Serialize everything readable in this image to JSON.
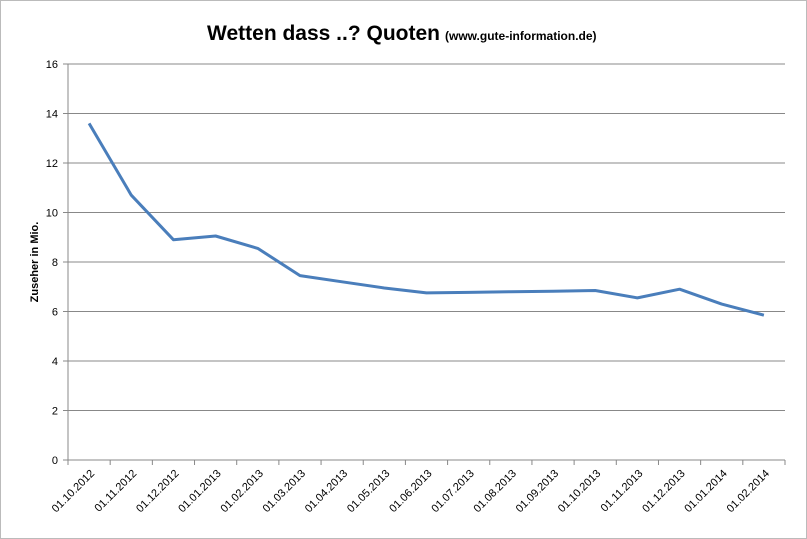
{
  "chart_data": {
    "type": "line",
    "title": "Wetten dass ..? Quoten",
    "subtitle": "(www.gute-information.de)",
    "y_label": "Zuseher in Mio.",
    "categories": [
      "01.10.2012",
      "01.11.2012",
      "01.12.2012",
      "01.01.2013",
      "01.02.2013",
      "01.03.2013",
      "01.04.2013",
      "01.05.2013",
      "01.06.2013",
      "01.07.2013",
      "01.08.2013",
      "01.09.2013",
      "01.10.2013",
      "01.11.2013",
      "01.12.2013",
      "01.01.2014",
      "01.02.2014"
    ],
    "values": [
      13.6,
      10.7,
      8.9,
      9.05,
      8.55,
      7.45,
      7.2,
      6.95,
      6.75,
      6.77,
      6.8,
      6.82,
      6.85,
      6.55,
      6.9,
      6.3,
      5.85
    ],
    "color": "#4a7ebb",
    "ylim": [
      0,
      16
    ],
    "yticks": [
      0,
      2,
      4,
      6,
      8,
      10,
      12,
      14,
      16
    ],
    "grid": true
  }
}
